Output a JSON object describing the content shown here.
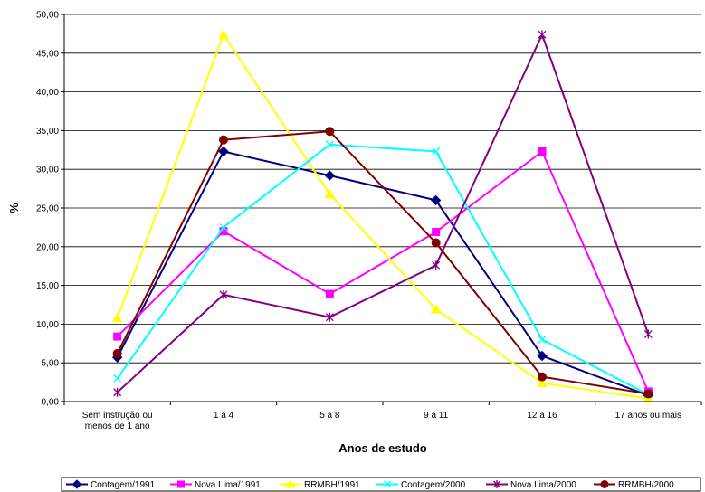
{
  "chart_data": {
    "type": "line",
    "xlabel": "Anos de estudo",
    "ylabel": "%",
    "ylim": [
      0,
      50
    ],
    "yticks": [
      "0,00",
      "5,00",
      "10,00",
      "15,00",
      "20,00",
      "25,00",
      "30,00",
      "35,00",
      "40,00",
      "45,00",
      "50,00"
    ],
    "categories": [
      [
        "Sem instrução ou",
        "menos de 1 ano"
      ],
      [
        "1 a 4"
      ],
      [
        "5 a 8"
      ],
      [
        "9 a 11"
      ],
      [
        "12 a 16"
      ],
      [
        "17 anos ou mais"
      ]
    ],
    "grid": "horizontal",
    "legend_position": "bottom",
    "series": [
      {
        "name": "Contagem/1991",
        "color": "#000080",
        "marker": "diamond",
        "values": [
          5.7,
          32.3,
          29.2,
          26.0,
          5.9,
          0.8
        ]
      },
      {
        "name": "Nova Lima/1991",
        "color": "#FF00FF",
        "marker": "square",
        "values": [
          8.4,
          22.0,
          13.9,
          21.9,
          32.3,
          1.3
        ]
      },
      {
        "name": "RRMBH/1991",
        "color": "#FFFF00",
        "marker": "triangle",
        "values": [
          10.8,
          47.4,
          26.8,
          11.9,
          2.4,
          0.4
        ]
      },
      {
        "name": "Contagem/2000",
        "color": "#00FFFF",
        "marker": "x",
        "values": [
          3.0,
          22.5,
          33.2,
          32.3,
          8.0,
          0.9
        ]
      },
      {
        "name": "Nova Lima/2000",
        "color": "#800080",
        "marker": "star",
        "values": [
          1.2,
          13.8,
          10.9,
          17.6,
          47.4,
          8.7
        ]
      },
      {
        "name": "RRMBH/2000",
        "color": "#800000",
        "marker": "circle",
        "values": [
          6.2,
          33.8,
          34.9,
          20.5,
          3.2,
          1.0
        ]
      }
    ]
  }
}
